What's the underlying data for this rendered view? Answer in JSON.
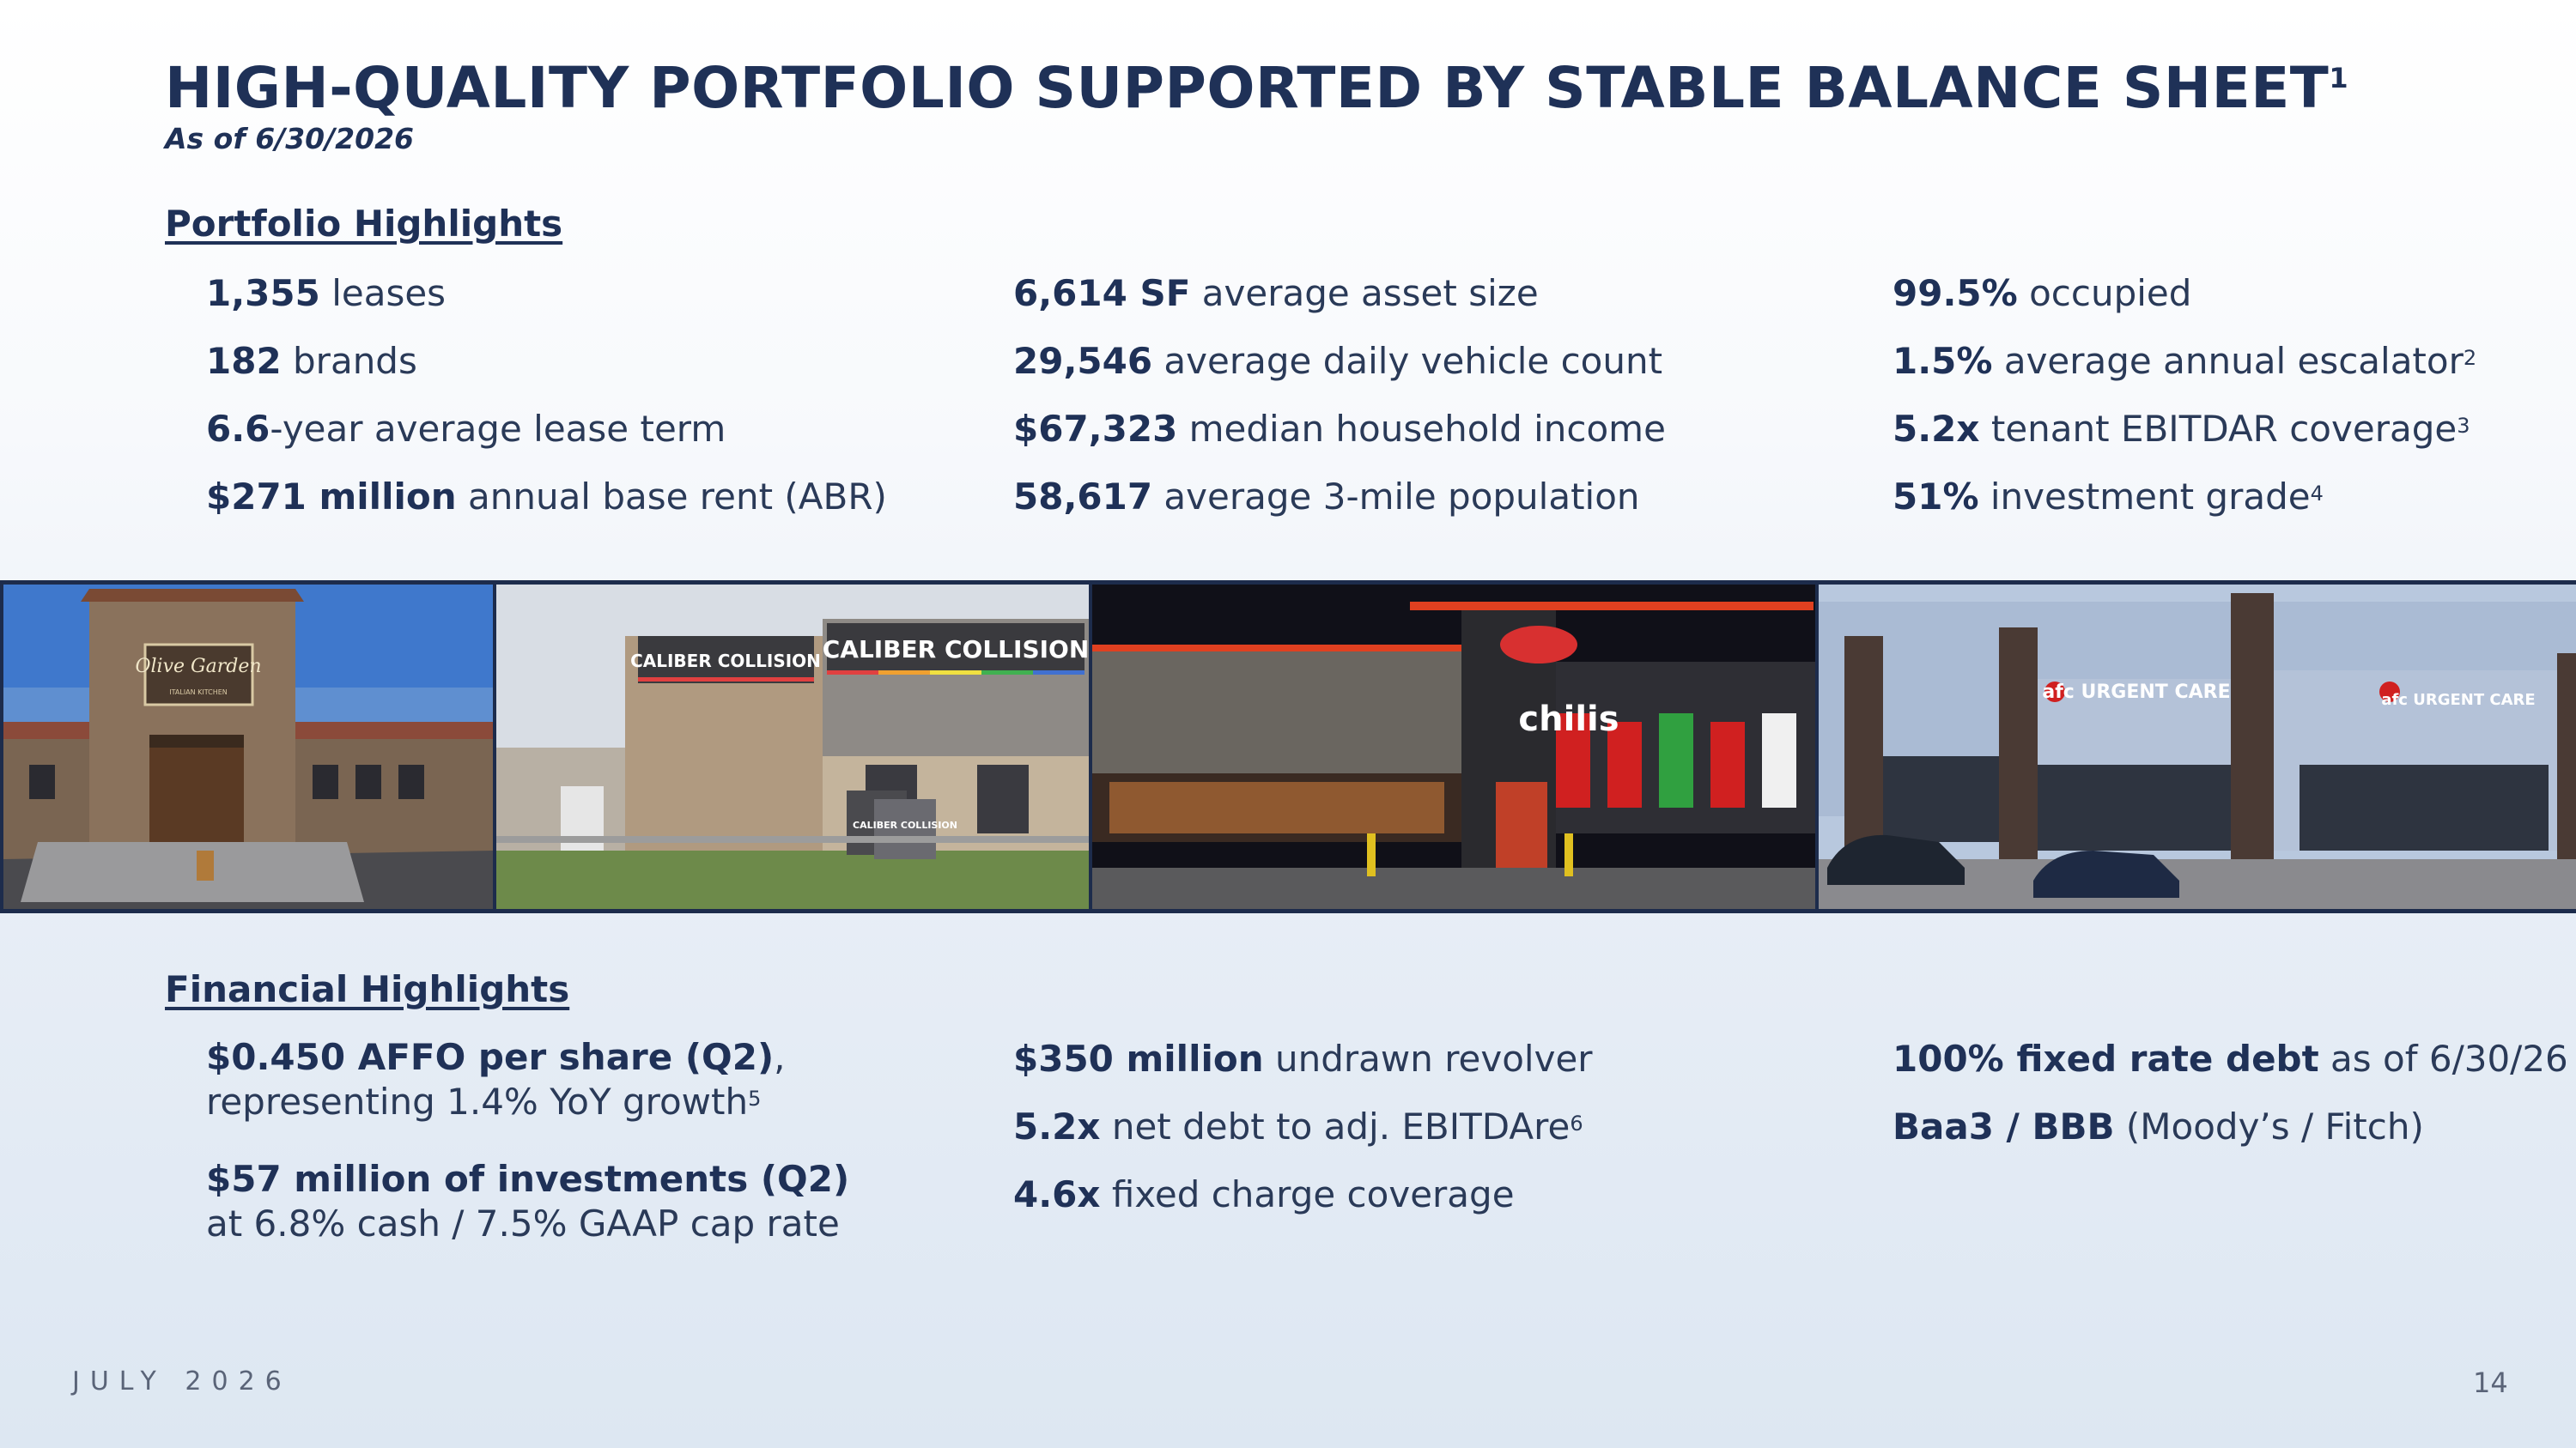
{
  "header": {
    "title": "HIGH-QUALITY PORTFOLIO SUPPORTED BY STABLE BALANCE SHEET",
    "title_footnote": "1",
    "subtitle": "As of 6/30/2026"
  },
  "portfolio": {
    "heading": "Portfolio Highlights",
    "col1": [
      {
        "value": "1,355",
        "text": " leases",
        "fn": ""
      },
      {
        "value": "182",
        "text": " brands",
        "fn": ""
      },
      {
        "value": "6.6",
        "text": "-year average lease term",
        "fn": ""
      },
      {
        "value": "$271 million",
        "text": " annual base rent (ABR)",
        "fn": ""
      }
    ],
    "col2": [
      {
        "value": "6,614 SF",
        "text": " average asset size",
        "fn": ""
      },
      {
        "value": "29,546",
        "text": " average daily vehicle count",
        "fn": ""
      },
      {
        "value": "$67,323",
        "text": " median household income",
        "fn": ""
      },
      {
        "value": "58,617",
        "text": " average 3-mile population",
        "fn": ""
      }
    ],
    "col3": [
      {
        "value": "99.5%",
        "text": " occupied",
        "fn": ""
      },
      {
        "value": "1.5%",
        "text": " average annual escalator",
        "fn": "2"
      },
      {
        "value": "5.2x",
        "text": " tenant EBITDAR coverage",
        "fn": "3"
      },
      {
        "value": "51%",
        "text": " investment grade",
        "fn": "4"
      }
    ]
  },
  "photos": {
    "olive_garden": {
      "sign": "Olive Garden",
      "sub": "ITALIAN KITCHEN"
    },
    "caliber": {
      "sign1": "CALIBER COLLISION",
      "sign2": "CALIBER COLLISION",
      "monument": "CALIBER COLLISION"
    },
    "chilis": {
      "sign": "chilis"
    },
    "afc": {
      "sign1": "afc URGENT CARE",
      "sign2": "afc URGENT CARE"
    }
  },
  "financial": {
    "heading": "Financial Highlights",
    "col1": {
      "a_bold": "$0.450 AFFO per share (Q2)",
      "a_comma": ",",
      "a_line2": "representing 1.4% YoY growth",
      "a_fn": "5",
      "b_bold": "$57 million of investments (Q2)",
      "b_line2": "at 6.8% cash / 7.5% GAAP cap rate"
    },
    "col2": [
      {
        "value": "$350 million",
        "text": " undrawn revolver",
        "fn": ""
      },
      {
        "value": "5.2x",
        "text": " net debt to adj. EBITDAre",
        "fn": "6"
      },
      {
        "value": "4.6x",
        "text": " fixed charge coverage",
        "fn": ""
      }
    ],
    "col3": [
      {
        "value": "100% fixed rate debt",
        "text": " as of 6/30/26",
        "fn": ""
      },
      {
        "value": "Baa3 / BBB",
        "text": " (Moody’s / Fitch)",
        "fn": ""
      }
    ]
  },
  "footer": {
    "date": "JULY 2026",
    "page": "14"
  }
}
